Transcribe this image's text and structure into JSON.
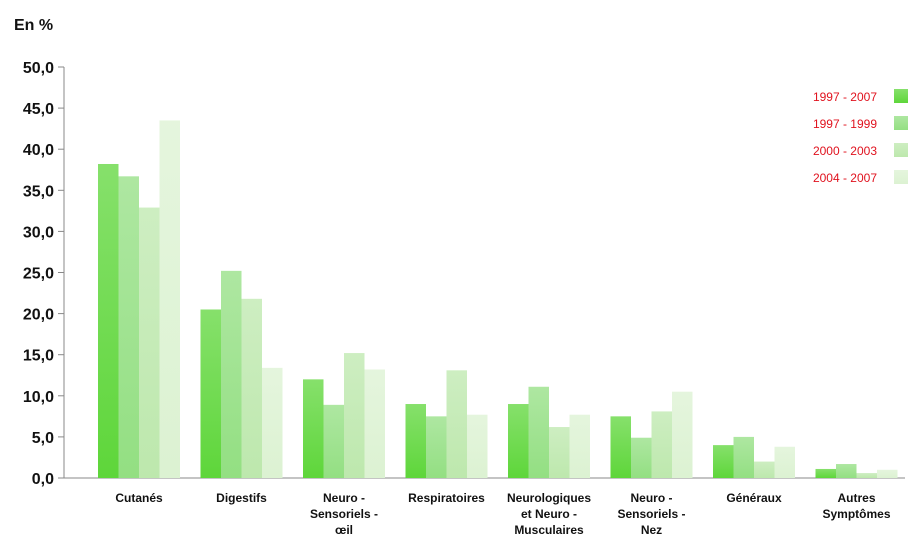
{
  "chart_data": {
    "type": "bar",
    "unit_label": "En %",
    "categories": [
      [
        "Cutanés"
      ],
      [
        "Digestifs"
      ],
      [
        "Neuro -",
        "Sensoriels -",
        "œil"
      ],
      [
        "Respiratoires"
      ],
      [
        "Neurologiques",
        "et Neuro -",
        "Musculaires"
      ],
      [
        "Neuro -",
        "Sensoriels -",
        "Nez"
      ],
      [
        "Généraux"
      ],
      [
        "Autres",
        "Symptômes"
      ]
    ],
    "series": [
      {
        "name": "1997 - 2007",
        "color": "#5ed63a",
        "values": [
          38.2,
          20.5,
          12.0,
          9.0,
          9.0,
          7.5,
          4.0,
          1.1
        ]
      },
      {
        "name": "1997 - 1999",
        "color": "#93df82",
        "values": [
          36.7,
          25.2,
          8.9,
          7.5,
          11.1,
          4.9,
          5.0,
          1.7
        ]
      },
      {
        "name": "2000 - 2003",
        "color": "#bde8ad",
        "values": [
          32.9,
          21.8,
          15.2,
          13.1,
          6.2,
          8.1,
          2.0,
          0.6
        ]
      },
      {
        "name": "2004 - 2007",
        "color": "#dcf2d2",
        "values": [
          43.5,
          13.4,
          13.2,
          7.7,
          7.7,
          10.5,
          3.8,
          1.0
        ]
      }
    ],
    "yticks": [
      "0,0",
      "5,0",
      "10,0",
      "15,0",
      "20,0",
      "25,0",
      "30,0",
      "35,0",
      "40,0",
      "45,0",
      "50,0"
    ],
    "ylim": [
      0,
      50
    ],
    "legend_position": "top-right",
    "grid": false
  }
}
